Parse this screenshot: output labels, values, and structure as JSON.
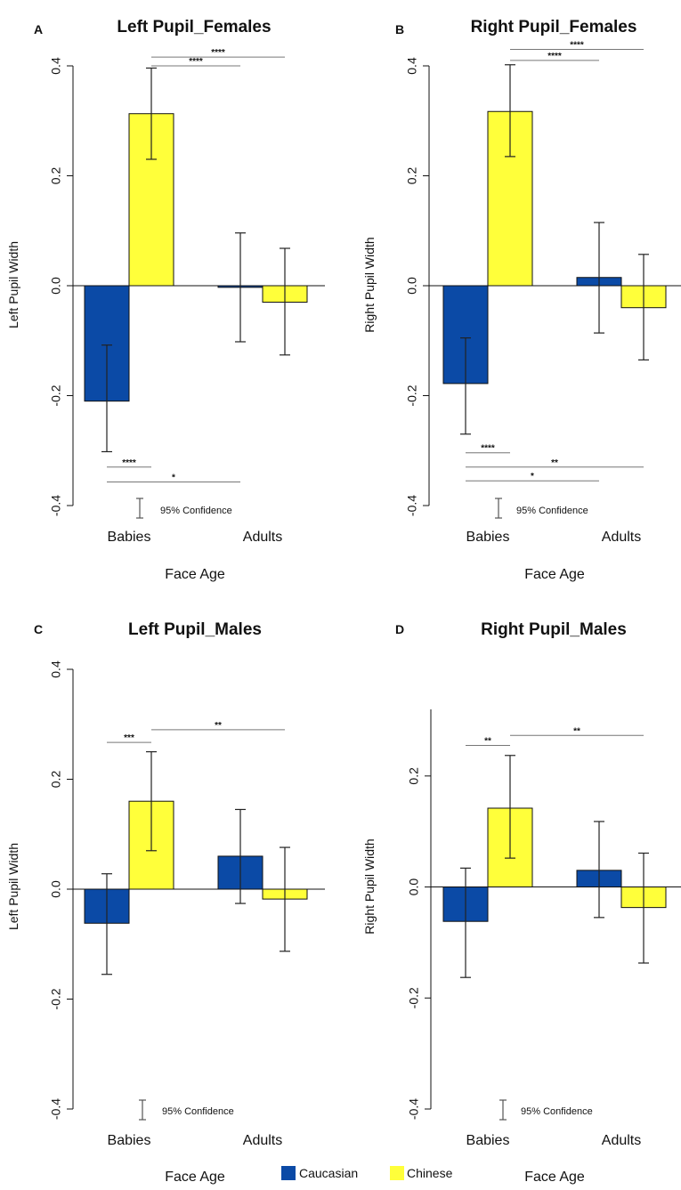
{
  "colors": {
    "caucasian": "#0B4AA6",
    "chinese": "#FFFF3A",
    "axis": "#111111",
    "sigline": "#777777"
  },
  "legend": {
    "caucasian": "Caucasian",
    "chinese": "Chinese"
  },
  "chart_data": [
    {
      "id": "A",
      "panel_label": "A",
      "type": "bar",
      "title": "Left Pupil_Females",
      "xlabel": "Face Age",
      "ylabel": "Left Pupil Width",
      "ylim": [
        -0.4,
        0.4
      ],
      "yticks": [
        -0.4,
        -0.2,
        0.0,
        0.2,
        0.4
      ],
      "ytick_labels": [
        "-0.4",
        "-0.2",
        "0.0",
        "0.2",
        "0.4"
      ],
      "categories": [
        "Babies",
        "Adults"
      ],
      "series": [
        {
          "name": "Caucasian",
          "values": [
            -0.21,
            -0.003
          ],
          "ci_low": [
            -0.302,
            -0.102
          ],
          "ci_high": [
            -0.108,
            0.096
          ]
        },
        {
          "name": "Chinese",
          "values": [
            0.313,
            -0.03
          ],
          "ci_low": [
            0.23,
            -0.126
          ],
          "ci_high": [
            0.396,
            0.068
          ]
        }
      ],
      "significance": [
        {
          "from": [
            0,
            1
          ],
          "to": [
            1,
            1
          ],
          "y": 0.416,
          "label": "****"
        },
        {
          "from": [
            0,
            1
          ],
          "to": [
            1,
            0
          ],
          "y": 0.4,
          "label": "****"
        },
        {
          "from": [
            0,
            0
          ],
          "to": [
            0,
            1
          ],
          "y": -0.33,
          "label": "****"
        },
        {
          "from": [
            0,
            0
          ],
          "to": [
            1,
            0
          ],
          "y": -0.357,
          "label": "*"
        }
      ],
      "confidence_label": "95% Confidence"
    },
    {
      "id": "B",
      "panel_label": "B",
      "type": "bar",
      "title": "Right Pupil_Females",
      "xlabel": "Face Age",
      "ylabel": "Right Pupil Width",
      "ylim": [
        -0.4,
        0.4
      ],
      "yticks": [
        -0.4,
        -0.2,
        0.0,
        0.2,
        0.4
      ],
      "ytick_labels": [
        "-0.4",
        "-0.2",
        "0.0",
        "0.2",
        "0.4"
      ],
      "categories": [
        "Babies",
        "Adults"
      ],
      "series": [
        {
          "name": "Caucasian",
          "values": [
            -0.178,
            0.015
          ],
          "ci_low": [
            -0.27,
            -0.086
          ],
          "ci_high": [
            -0.095,
            0.115
          ]
        },
        {
          "name": "Chinese",
          "values": [
            0.317,
            -0.04
          ],
          "ci_low": [
            0.235,
            -0.135
          ],
          "ci_high": [
            0.402,
            0.057
          ]
        }
      ],
      "significance": [
        {
          "from": [
            0,
            1
          ],
          "to": [
            1,
            1
          ],
          "y": 0.43,
          "label": "****"
        },
        {
          "from": [
            0,
            1
          ],
          "to": [
            1,
            0
          ],
          "y": 0.41,
          "label": "****"
        },
        {
          "from": [
            0,
            0
          ],
          "to": [
            0,
            1
          ],
          "y": -0.304,
          "label": "****"
        },
        {
          "from": [
            0,
            0
          ],
          "to": [
            1,
            1
          ],
          "y": -0.33,
          "label": "**"
        },
        {
          "from": [
            0,
            0
          ],
          "to": [
            1,
            0
          ],
          "y": -0.355,
          "label": "*"
        }
      ],
      "confidence_label": "95% Confidence"
    },
    {
      "id": "C",
      "panel_label": "C",
      "type": "bar",
      "title": "Left Pupil_Males",
      "xlabel": "Face Age",
      "ylabel": "Left Pupil Width",
      "ylim": [
        -0.4,
        0.4
      ],
      "yticks": [
        -0.4,
        -0.2,
        0.0,
        0.2,
        0.4
      ],
      "ytick_labels": [
        "-0.4",
        "-0.2",
        "0.0",
        "0.2",
        "0.4"
      ],
      "categories": [
        "Babies",
        "Adults"
      ],
      "series": [
        {
          "name": "Caucasian",
          "values": [
            -0.062,
            0.06
          ],
          "ci_low": [
            -0.155,
            -0.026
          ],
          "ci_high": [
            0.028,
            0.145
          ]
        },
        {
          "name": "Chinese",
          "values": [
            0.16,
            -0.018
          ],
          "ci_low": [
            0.07,
            -0.113
          ],
          "ci_high": [
            0.25,
            0.076
          ]
        }
      ],
      "significance": [
        {
          "from": [
            0,
            0
          ],
          "to": [
            0,
            1
          ],
          "y": 0.267,
          "label": "***"
        },
        {
          "from": [
            0,
            1
          ],
          "to": [
            1,
            1
          ],
          "y": 0.29,
          "label": "**"
        }
      ],
      "confidence_label": "95% Confidence"
    },
    {
      "id": "D",
      "panel_label": "D",
      "type": "bar",
      "title": "Right Pupil_Males",
      "xlabel": "Face Age",
      "ylabel": "Right Pupil Width",
      "ylim": [
        -0.4,
        0.32
      ],
      "yticks": [
        -0.4,
        -0.2,
        0.0,
        0.2
      ],
      "ytick_labels": [
        "-0.4",
        "-0.2",
        "0.0",
        "0.2"
      ],
      "categories": [
        "Babies",
        "Adults"
      ],
      "series": [
        {
          "name": "Caucasian",
          "values": [
            -0.062,
            0.03
          ],
          "ci_low": [
            -0.163,
            -0.055
          ],
          "ci_high": [
            0.034,
            0.118
          ]
        },
        {
          "name": "Chinese",
          "values": [
            0.142,
            -0.037
          ],
          "ci_low": [
            0.052,
            -0.137
          ],
          "ci_high": [
            0.237,
            0.061
          ]
        }
      ],
      "significance": [
        {
          "from": [
            0,
            0
          ],
          "to": [
            0,
            1
          ],
          "y": 0.255,
          "label": "**"
        },
        {
          "from": [
            0,
            1
          ],
          "to": [
            1,
            1
          ],
          "y": 0.273,
          "label": "**"
        }
      ],
      "confidence_label": "95% Confidence"
    }
  ]
}
